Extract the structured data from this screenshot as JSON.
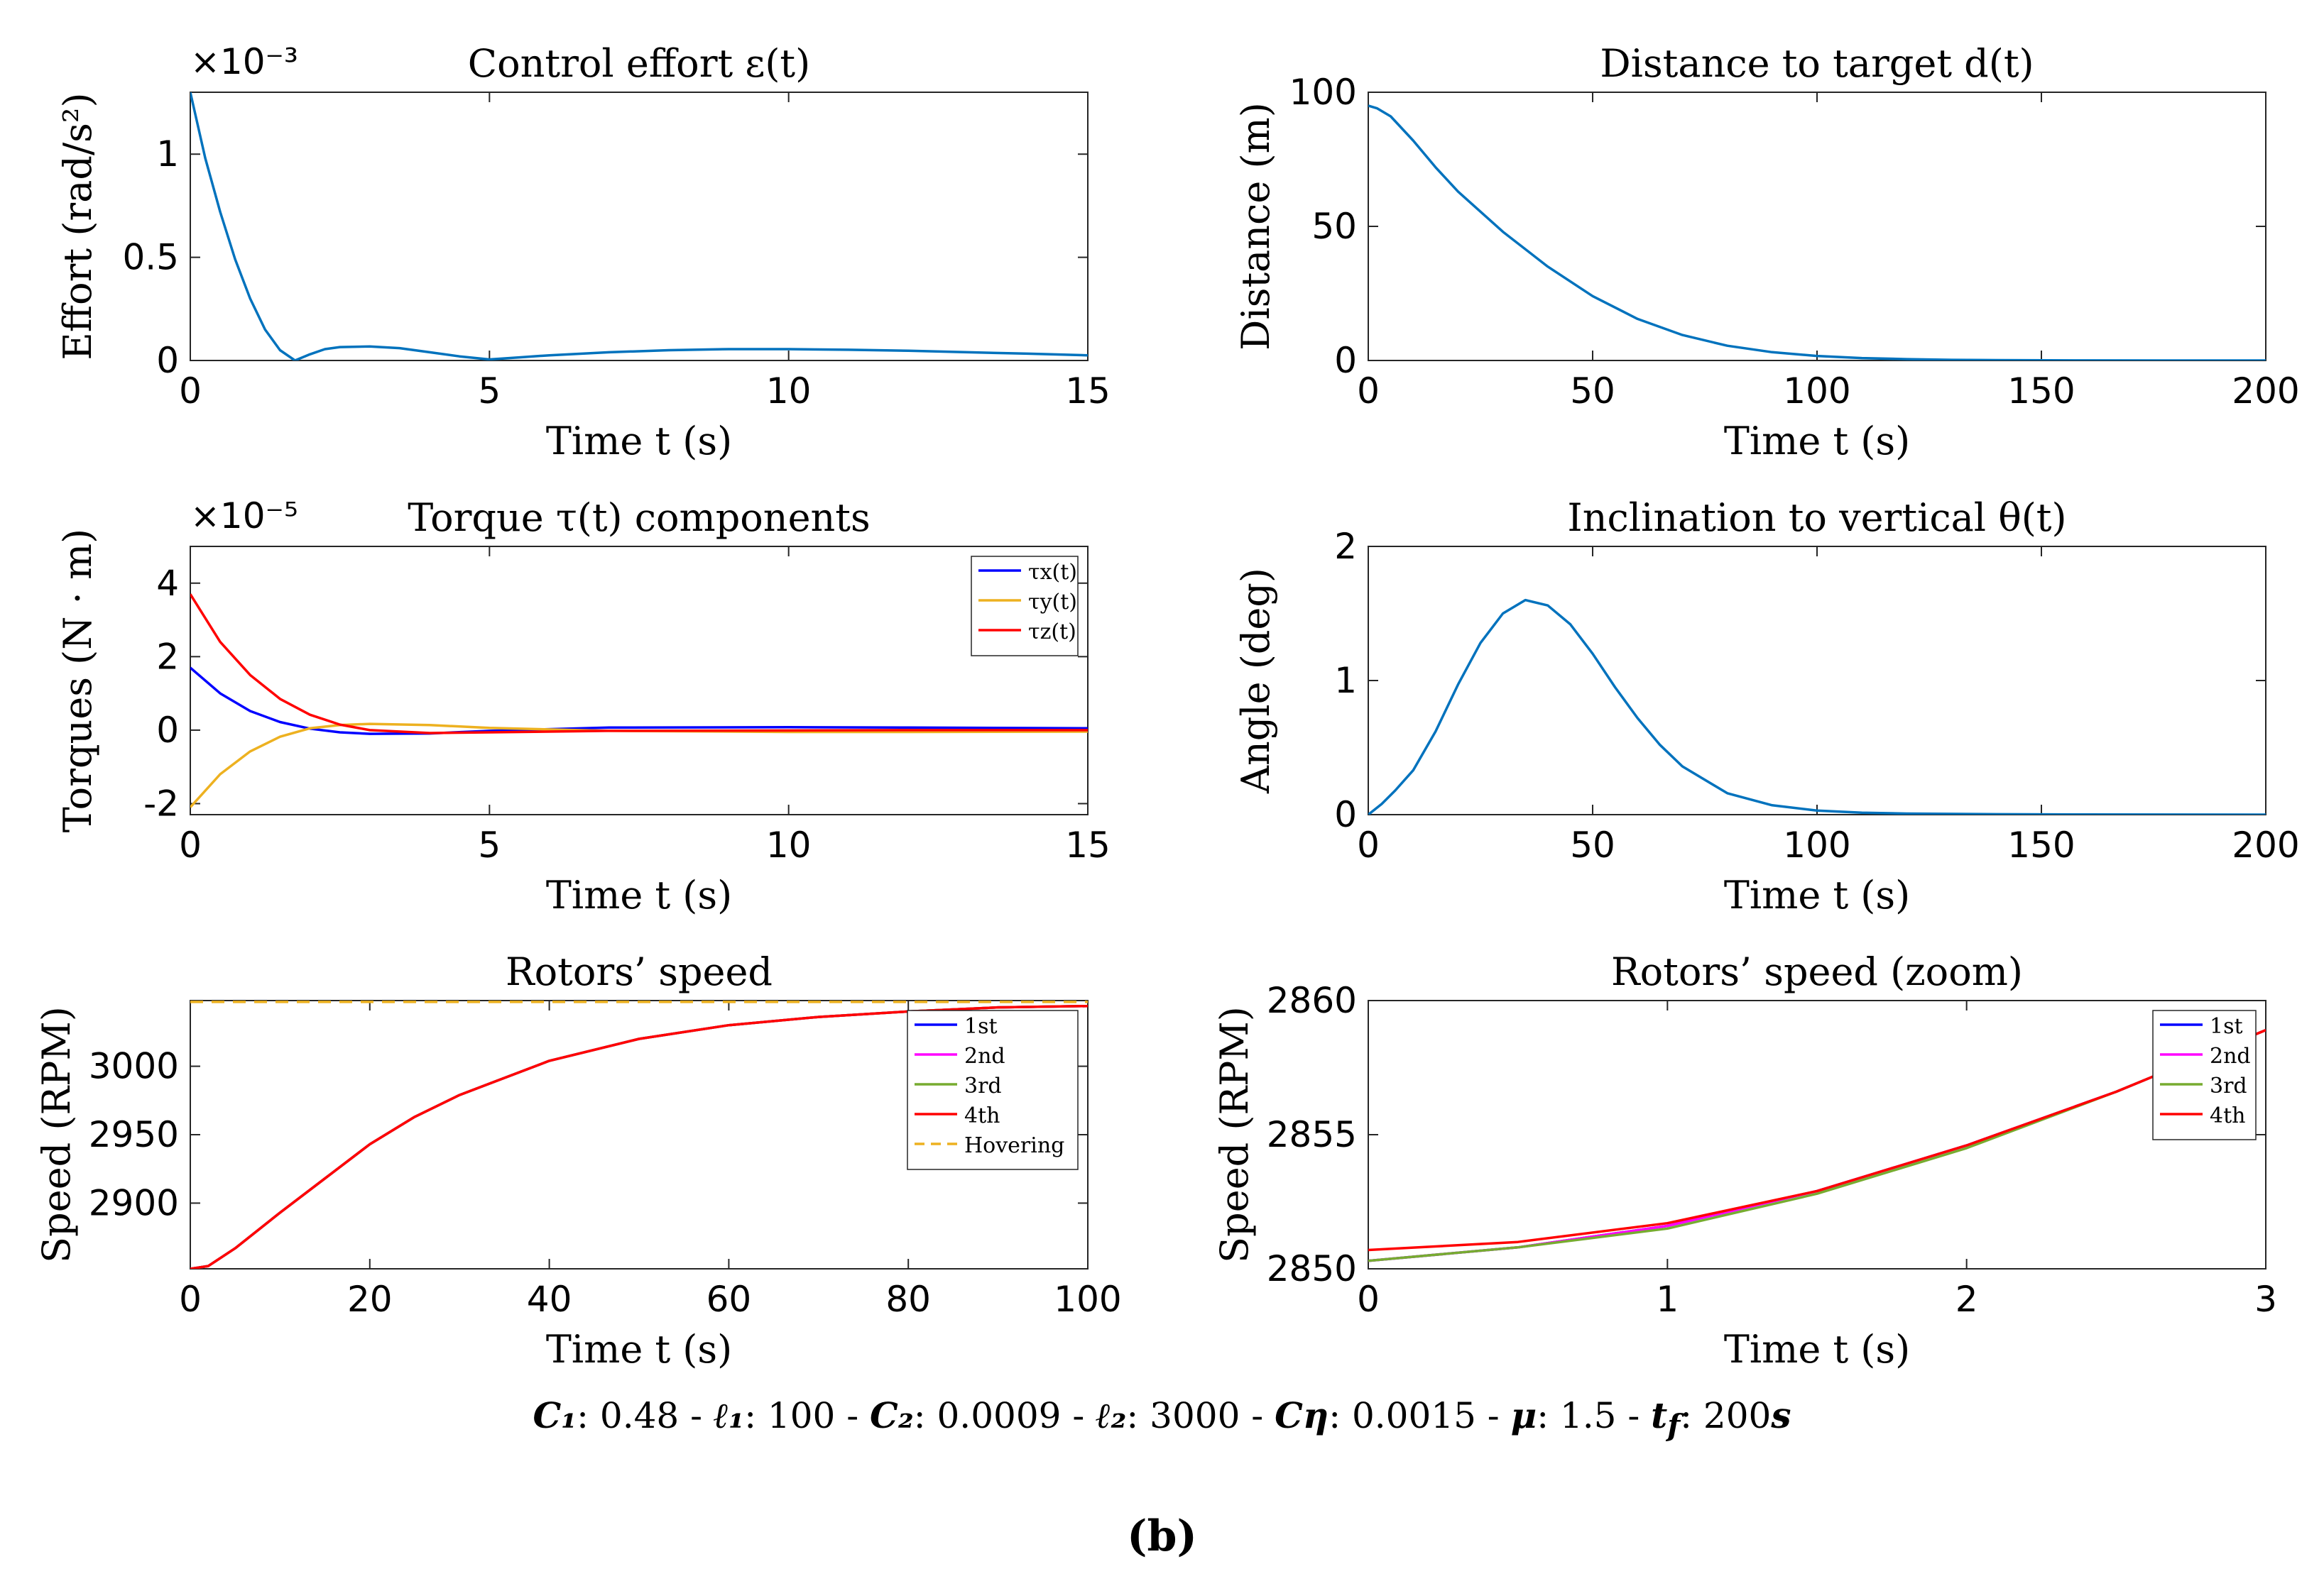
{
  "caption": {
    "c1": "C₁",
    "c1_val": ": 0.48 - ",
    "l1": "ℓ₁",
    "l1_val": ": 100 - ",
    "c2": "C₂",
    "c2_val": ": 0.0009 - ",
    "l2": "ℓ₂",
    "l2_val": ": 3000 - ",
    "ceta": "Cη",
    "ceta_val": ": 0.0015 - ",
    "mu": "μ",
    "mu_val": ": 1.5 - ",
    "tf": "t",
    "tf_sub": "f",
    "tf_val": ": 200",
    "tf_unit": "s"
  },
  "panel_label": "(b)",
  "chart_data": [
    {
      "id": "effort",
      "type": "line",
      "title": "Control effort ε(t)",
      "xlabel": "Time t (s)",
      "ylabel": "Effort (rad/s²)",
      "exponent": "×10⁻³",
      "xlim": [
        0,
        15
      ],
      "ylim": [
        0,
        1.3
      ],
      "xticks": [
        0,
        5,
        10,
        15
      ],
      "xtick_labels": [
        "0",
        "5",
        "10",
        "15"
      ],
      "yticks": [
        0,
        0.5,
        1
      ],
      "ytick_labels": [
        "0",
        "0.5",
        "1"
      ],
      "series": [
        {
          "color": "#0072BD",
          "x": [
            0,
            0.25,
            0.5,
            0.75,
            1.0,
            1.25,
            1.5,
            1.75,
            2.0,
            2.25,
            2.5,
            3.0,
            3.5,
            4.0,
            4.5,
            5.0,
            5.5,
            6.0,
            7.0,
            8.0,
            9.0,
            10.0,
            11.0,
            12.0,
            13.0,
            14.0,
            15.0
          ],
          "y": [
            1.3,
            0.98,
            0.72,
            0.49,
            0.3,
            0.15,
            0.05,
            0.0,
            0.03,
            0.055,
            0.065,
            0.068,
            0.06,
            0.04,
            0.02,
            0.005,
            0.015,
            0.025,
            0.04,
            0.05,
            0.055,
            0.055,
            0.052,
            0.047,
            0.04,
            0.033,
            0.025
          ]
        }
      ]
    },
    {
      "id": "distance",
      "type": "line",
      "title": "Distance to target d(t)",
      "xlabel": "Time t (s)",
      "ylabel": "Distance (m)",
      "xlim": [
        0,
        200
      ],
      "ylim": [
        0,
        100
      ],
      "xticks": [
        0,
        50,
        100,
        150,
        200
      ],
      "xtick_labels": [
        "0",
        "50",
        "100",
        "150",
        "200"
      ],
      "yticks": [
        0,
        50,
        100
      ],
      "ytick_labels": [
        "0",
        "50",
        "100"
      ],
      "series": [
        {
          "color": "#0072BD",
          "x": [
            0,
            2,
            5,
            10,
            15,
            20,
            30,
            40,
            50,
            60,
            70,
            80,
            90,
            100,
            110,
            120,
            130,
            140,
            160,
            180,
            200
          ],
          "y": [
            95,
            94,
            91,
            82,
            72,
            63,
            48,
            35,
            24,
            15.5,
            9.5,
            5.5,
            3.1,
            1.7,
            0.9,
            0.5,
            0.25,
            0.12,
            0.03,
            0.01,
            0.0
          ]
        }
      ]
    },
    {
      "id": "torque",
      "type": "line",
      "title": "Torque τ(t) components",
      "xlabel": "Time t (s)",
      "ylabel": "Torques (N · m)",
      "exponent": "×10⁻⁵",
      "xlim": [
        0,
        15
      ],
      "ylim": [
        -2.3,
        5
      ],
      "xticks": [
        0,
        5,
        10,
        15
      ],
      "xtick_labels": [
        "0",
        "5",
        "10",
        "15"
      ],
      "yticks": [
        -2,
        0,
        2,
        4
      ],
      "ytick_labels": [
        "-2",
        "0",
        "2",
        "4"
      ],
      "legend": "top-right",
      "series": [
        {
          "name": "τx(t)",
          "color": "#0000FF",
          "x": [
            0,
            0.5,
            1.0,
            1.5,
            2.0,
            2.5,
            3.0,
            4.0,
            5.0,
            7.0,
            10.0,
            12.0,
            15.0
          ],
          "y": [
            1.7,
            1.0,
            0.52,
            0.22,
            0.04,
            -0.06,
            -0.1,
            -0.09,
            -0.02,
            0.07,
            0.08,
            0.07,
            0.05
          ]
        },
        {
          "name": "τy(t)",
          "color": "#EDB120",
          "x": [
            0,
            0.5,
            1.0,
            1.5,
            2.0,
            2.5,
            3.0,
            4.0,
            5.0,
            7.0,
            10.0,
            12.0,
            15.0
          ],
          "y": [
            -2.1,
            -1.2,
            -0.58,
            -0.18,
            0.05,
            0.14,
            0.17,
            0.14,
            0.06,
            -0.02,
            -0.05,
            -0.05,
            -0.04
          ]
        },
        {
          "name": "τz(t)",
          "color": "#FF0000",
          "x": [
            0,
            0.5,
            1.0,
            1.5,
            2.0,
            2.5,
            3.0,
            4.0,
            5.0,
            7.0,
            10.0,
            12.0,
            15.0
          ],
          "y": [
            3.7,
            2.4,
            1.5,
            0.85,
            0.42,
            0.15,
            0.0,
            -0.08,
            -0.06,
            -0.02,
            -0.01,
            0.0,
            0.0
          ]
        }
      ]
    },
    {
      "id": "angle",
      "type": "line",
      "title": "Inclination to vertical θ(t)",
      "xlabel": "Time t (s)",
      "ylabel": "Angle (deg)",
      "xlim": [
        0,
        200
      ],
      "ylim": [
        0,
        2
      ],
      "xticks": [
        0,
        50,
        100,
        150,
        200
      ],
      "xtick_labels": [
        "0",
        "50",
        "100",
        "150",
        "200"
      ],
      "yticks": [
        0,
        1,
        2
      ],
      "ytick_labels": [
        "0",
        "1",
        "2"
      ],
      "series": [
        {
          "color": "#0072BD",
          "x": [
            0,
            3,
            6,
            10,
            15,
            20,
            25,
            30,
            35,
            40,
            45,
            50,
            55,
            60,
            65,
            70,
            80,
            90,
            100,
            110,
            120,
            140,
            160,
            200
          ],
          "y": [
            0,
            0.08,
            0.18,
            0.33,
            0.62,
            0.97,
            1.28,
            1.5,
            1.6,
            1.56,
            1.42,
            1.2,
            0.95,
            0.72,
            0.52,
            0.36,
            0.16,
            0.07,
            0.03,
            0.015,
            0.008,
            0.003,
            0.001,
            0.0
          ]
        }
      ]
    },
    {
      "id": "rotors",
      "type": "line",
      "title": "Rotors’ speed",
      "xlabel": "Time t (s)",
      "ylabel": "Speed (RPM)",
      "xlim": [
        0,
        100
      ],
      "ylim": [
        2852,
        3048
      ],
      "xticks": [
        0,
        20,
        40,
        60,
        80,
        100
      ],
      "xtick_labels": [
        "0",
        "20",
        "40",
        "60",
        "80",
        "100"
      ],
      "yticks": [
        2900,
        2950,
        3000
      ],
      "ytick_labels": [
        "2900",
        "2950",
        "3000"
      ],
      "legend": "top-right",
      "series": [
        {
          "name": "1st",
          "color": "#0000FF",
          "x": [
            0,
            2,
            5,
            10,
            15,
            20,
            25,
            30,
            40,
            50,
            60,
            70,
            80,
            90,
            100
          ],
          "y": [
            2852,
            2854,
            2867,
            2893,
            2918,
            2943,
            2963,
            2979,
            3004,
            3020,
            3030,
            3036,
            3040,
            3043,
            3044
          ]
        },
        {
          "name": "2nd",
          "color": "#FF00FF",
          "x": [
            0,
            2,
            5,
            10,
            15,
            20,
            25,
            30,
            40,
            50,
            60,
            70,
            80,
            90,
            100
          ],
          "y": [
            2852,
            2854,
            2867,
            2893,
            2918,
            2943,
            2963,
            2979,
            3004,
            3020,
            3030,
            3036,
            3040,
            3043,
            3044
          ]
        },
        {
          "name": "3rd",
          "color": "#77AC30",
          "x": [
            0,
            2,
            5,
            10,
            15,
            20,
            25,
            30,
            40,
            50,
            60,
            70,
            80,
            90,
            100
          ],
          "y": [
            2852,
            2854,
            2867,
            2893,
            2918,
            2943,
            2963,
            2979,
            3004,
            3020,
            3030,
            3036,
            3040,
            3043,
            3044
          ]
        },
        {
          "name": "4th",
          "color": "#FF0000",
          "x": [
            0,
            2,
            5,
            10,
            15,
            20,
            25,
            30,
            40,
            50,
            60,
            70,
            80,
            90,
            100
          ],
          "y": [
            2852,
            2854,
            2867,
            2893,
            2918,
            2943,
            2963,
            2979,
            3004,
            3020,
            3030,
            3036,
            3040,
            3043,
            3044
          ]
        },
        {
          "name": "Hovering",
          "color": "#EDB120",
          "dashed": true,
          "x": [
            0,
            100
          ],
          "y": [
            3047,
            3047
          ]
        }
      ]
    },
    {
      "id": "rotors_zoom",
      "type": "line",
      "title": "Rotors’ speed (zoom)",
      "xlabel": "Time t (s)",
      "ylabel": "Speed (RPM)",
      "xlim": [
        0,
        3
      ],
      "ylim": [
        2850,
        2860
      ],
      "xticks": [
        0,
        1,
        2,
        3
      ],
      "xtick_labels": [
        "0",
        "1",
        "2",
        "3"
      ],
      "yticks": [
        2850,
        2855,
        2860
      ],
      "ytick_labels": [
        "2850",
        "2855",
        "2860"
      ],
      "legend": "top-right",
      "series": [
        {
          "name": "1st",
          "color": "#0000FF",
          "x": [
            0,
            0.5,
            1.0,
            1.5,
            2.0,
            2.5,
            3.0
          ],
          "y": [
            2850.3,
            2850.8,
            2851.6,
            2852.9,
            2854.6,
            2856.6,
            2858.9
          ]
        },
        {
          "name": "2nd",
          "color": "#FF00FF",
          "x": [
            0,
            0.5,
            1.0,
            1.5,
            2.0,
            2.5,
            3.0
          ],
          "y": [
            2850.3,
            2850.8,
            2851.6,
            2852.9,
            2854.6,
            2856.6,
            2858.9
          ]
        },
        {
          "name": "3rd",
          "color": "#77AC30",
          "x": [
            0,
            0.5,
            1.0,
            1.5,
            2.0,
            2.5,
            3.0
          ],
          "y": [
            2850.3,
            2850.8,
            2851.5,
            2852.8,
            2854.5,
            2856.6,
            2858.9
          ]
        },
        {
          "name": "4th",
          "color": "#FF0000",
          "x": [
            0,
            0.5,
            1.0,
            1.5,
            2.0,
            2.5,
            3.0
          ],
          "y": [
            2850.7,
            2851.0,
            2851.7,
            2852.9,
            2854.6,
            2856.6,
            2858.9
          ]
        }
      ]
    }
  ]
}
